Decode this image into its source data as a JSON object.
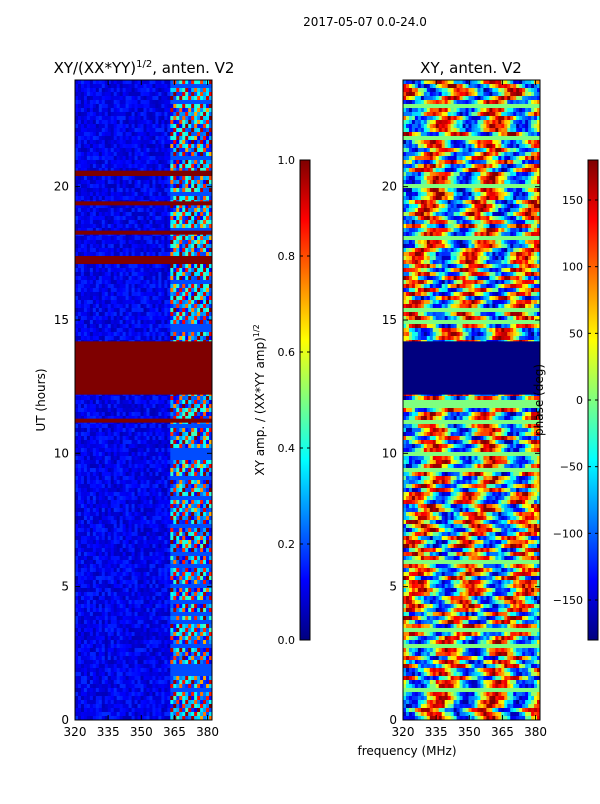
{
  "suptitle": "2017-05-07 0.0-24.0",
  "colors": {
    "jet": [
      "#00007f",
      "#0000ff",
      "#007fff",
      "#00ffff",
      "#7fff7f",
      "#ffff00",
      "#ff7f00",
      "#ff0000",
      "#7f0000"
    ],
    "axis": "#000000",
    "flag_band_left": "#7f0000",
    "flag_band_right": "#00007f"
  },
  "chart_data": [
    {
      "type": "heatmap",
      "title_main": "XY/(XX*YY)",
      "title_exp": "1/2",
      "title_tail": ", anten. V2",
      "ylabel": "UT (hours)",
      "xlim": [
        320,
        382
      ],
      "ylim": [
        0,
        24
      ],
      "xticks": [
        "320",
        "335",
        "350",
        "365",
        "380"
      ],
      "yticks": [
        "0",
        "5",
        "10",
        "15",
        "20"
      ],
      "flag_bands_hours": [
        [
          12.2,
          14.2
        ],
        [
          17.1,
          17.4
        ],
        [
          20.4,
          20.6
        ],
        [
          19.3,
          19.45
        ],
        [
          18.2,
          18.35
        ],
        [
          11.15,
          11.3
        ]
      ],
      "colorbar": {
        "label_main": "XY amp. / (XX*YY amp)",
        "label_exp": "1/2",
        "range": [
          0.0,
          1.0
        ],
        "ticks": [
          "0.0",
          "0.2",
          "0.4",
          "0.6",
          "0.8",
          "1.0"
        ]
      }
    },
    {
      "type": "heatmap",
      "title": "XY, anten. V2",
      "xlabel": "frequency (MHz)",
      "xlim": [
        320,
        382
      ],
      "ylim": [
        0,
        24
      ],
      "xticks": [
        "320",
        "335",
        "350",
        "365",
        "380"
      ],
      "yticks": [
        "0",
        "5",
        "10",
        "15",
        "20"
      ],
      "flag_bands_hours": [
        [
          12.2,
          14.2
        ]
      ],
      "colorbar": {
        "label": "phase (deg)",
        "range": [
          -180,
          180
        ],
        "ticks": [
          "−150",
          "−100",
          "−50",
          "0",
          "50",
          "100",
          "150"
        ]
      }
    }
  ]
}
